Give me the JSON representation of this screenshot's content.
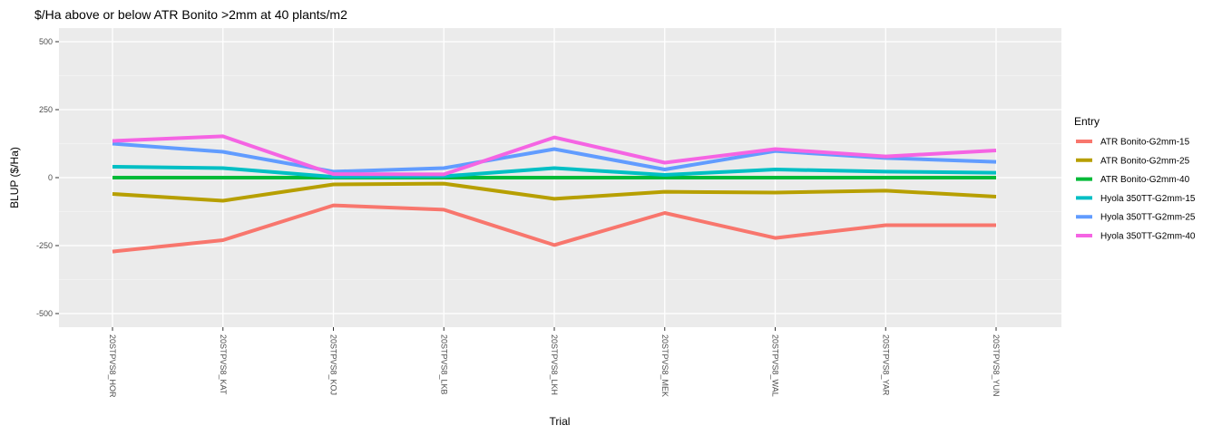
{
  "chart_data": {
    "type": "line",
    "title": "$/Ha above or below ATR Bonito >2mm at 40 plants/m2",
    "xlabel": "Trial",
    "ylabel": "BLUP ($/Ha)",
    "ylim": [
      -550,
      550
    ],
    "yticks": [
      500,
      250,
      0,
      -250,
      -500
    ],
    "grid": true,
    "legend": {
      "title": "Entry",
      "placement": "right"
    },
    "categories": [
      "20STPVS8_HOR",
      "20STPVS8_KAT",
      "20STPVS8_KOJ",
      "20STPVS8_LKB",
      "20STPVS8_LKH",
      "20STPVS8_MEK",
      "20STPVS8_WAL",
      "20STPVS8_YAR",
      "20STPVS8_YUN"
    ],
    "series": [
      {
        "name": "ATR Bonito-G2mm-15",
        "color": "#F8766D",
        "values": [
          -272,
          -230,
          -102,
          -118,
          -248,
          -130,
          -222,
          -175,
          -175
        ]
      },
      {
        "name": "ATR Bonito-G2mm-25",
        "color": "#B79F00",
        "values": [
          -60,
          -85,
          -25,
          -22,
          -78,
          -52,
          -55,
          -48,
          -70
        ]
      },
      {
        "name": "ATR Bonito-G2mm-40",
        "color": "#00BA38",
        "values": [
          0,
          0,
          0,
          0,
          0,
          0,
          0,
          0,
          0
        ]
      },
      {
        "name": "Hyola 350TT-G2mm-15",
        "color": "#00BFC4",
        "values": [
          40,
          35,
          3,
          5,
          35,
          10,
          30,
          22,
          18
        ]
      },
      {
        "name": "Hyola 350TT-G2mm-25",
        "color": "#619CFF",
        "values": [
          125,
          95,
          22,
          35,
          105,
          30,
          98,
          72,
          58
        ]
      },
      {
        "name": "Hyola 350TT-G2mm-40",
        "color": "#F564E3",
        "values": [
          135,
          152,
          13,
          12,
          148,
          55,
          105,
          78,
          100
        ]
      }
    ]
  }
}
